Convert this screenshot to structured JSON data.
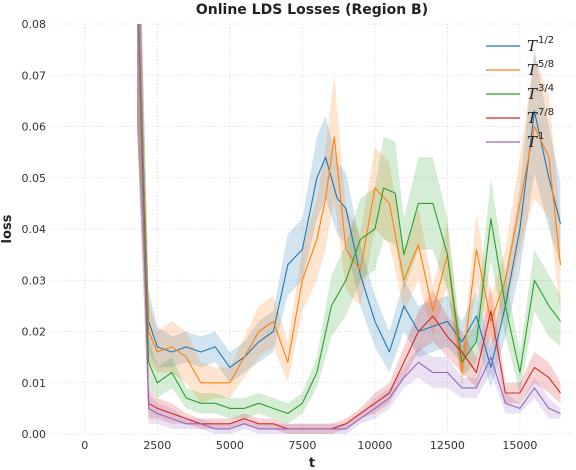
{
  "chart_data": {
    "type": "line",
    "title": "Online LDS Losses (Region B)",
    "xlabel": "t",
    "ylabel": "loss",
    "xlim": [
      -1200,
      16900
    ],
    "ylim": [
      0,
      0.08
    ],
    "xticks": [
      0,
      2500,
      5000,
      7500,
      10000,
      12500,
      15000
    ],
    "xtick_labels": [
      "0",
      "2500",
      "5000",
      "7500",
      "10000",
      "12500",
      "15000"
    ],
    "yticks": [
      0,
      0.01,
      0.02,
      0.03,
      0.04,
      0.05,
      0.06,
      0.07,
      0.08
    ],
    "ytick_labels": [
      "0.00",
      "0.01",
      "0.02",
      "0.03",
      "0.04",
      "0.05",
      "0.06",
      "0.07",
      "0.08"
    ],
    "grid": true,
    "legend_position": "top-right",
    "colors": {
      "blue": "#1f77b4",
      "orange": "#ff7f0e",
      "green": "#2ca02c",
      "red": "#d62728",
      "purple": "#9467bd"
    },
    "series": [
      {
        "name_base": "T",
        "name_exp": "1/2",
        "color": "#1f77b4",
        "x": [
          1800,
          2200,
          2500,
          3000,
          3500,
          4000,
          4500,
          5000,
          5500,
          6000,
          6500,
          7000,
          7500,
          8000,
          8300,
          8700,
          9000,
          9500,
          10000,
          10500,
          11000,
          11500,
          12000,
          12500,
          13000,
          13500,
          14000,
          14500,
          15000,
          15500,
          16000,
          16400
        ],
        "y": [
          0.09,
          0.022,
          0.017,
          0.016,
          0.017,
          0.016,
          0.017,
          0.013,
          0.015,
          0.018,
          0.02,
          0.033,
          0.036,
          0.05,
          0.054,
          0.046,
          0.044,
          0.031,
          0.022,
          0.016,
          0.025,
          0.02,
          0.021,
          0.022,
          0.018,
          0.023,
          0.013,
          0.025,
          0.04,
          0.063,
          0.05,
          0.041
        ],
        "band": [
          0.03,
          0.006,
          0.004,
          0.003,
          0.003,
          0.003,
          0.003,
          0.003,
          0.003,
          0.004,
          0.004,
          0.006,
          0.006,
          0.008,
          0.008,
          0.007,
          0.007,
          0.006,
          0.005,
          0.004,
          0.005,
          0.005,
          0.005,
          0.005,
          0.004,
          0.005,
          0.004,
          0.006,
          0.008,
          0.012,
          0.01,
          0.008
        ]
      },
      {
        "name_base": "T",
        "name_exp": "5/8",
        "color": "#ff7f0e",
        "x": [
          1800,
          2200,
          2500,
          3000,
          3500,
          4000,
          4500,
          5000,
          5500,
          6000,
          6500,
          7000,
          7500,
          8000,
          8300,
          8600,
          9000,
          9500,
          10000,
          10500,
          11000,
          11500,
          12000,
          12500,
          13000,
          13500,
          14000,
          14500,
          15000,
          15500,
          16000,
          16400
        ],
        "y": [
          0.09,
          0.02,
          0.016,
          0.017,
          0.015,
          0.01,
          0.01,
          0.01,
          0.015,
          0.02,
          0.022,
          0.014,
          0.03,
          0.038,
          0.046,
          0.058,
          0.036,
          0.032,
          0.048,
          0.045,
          0.03,
          0.037,
          0.024,
          0.035,
          0.012,
          0.036,
          0.022,
          0.03,
          0.045,
          0.06,
          0.054,
          0.033
        ],
        "band": [
          0.03,
          0.006,
          0.004,
          0.005,
          0.005,
          0.004,
          0.003,
          0.003,
          0.004,
          0.005,
          0.005,
          0.004,
          0.006,
          0.008,
          0.01,
          0.012,
          0.008,
          0.007,
          0.008,
          0.008,
          0.006,
          0.007,
          0.005,
          0.006,
          0.003,
          0.007,
          0.005,
          0.006,
          0.009,
          0.014,
          0.012,
          0.009
        ]
      },
      {
        "name_base": "T",
        "name_exp": "3/4",
        "color": "#2ca02c",
        "x": [
          1800,
          2200,
          2500,
          3000,
          3500,
          4000,
          4500,
          5000,
          5500,
          6000,
          6500,
          7000,
          7500,
          8000,
          8500,
          9000,
          9500,
          10000,
          10300,
          10700,
          11000,
          11500,
          12000,
          12500,
          13000,
          13500,
          14000,
          14500,
          15000,
          15500,
          16000,
          16400
        ],
        "y": [
          0.09,
          0.014,
          0.01,
          0.012,
          0.007,
          0.006,
          0.006,
          0.005,
          0.005,
          0.006,
          0.005,
          0.004,
          0.006,
          0.012,
          0.025,
          0.03,
          0.038,
          0.04,
          0.048,
          0.047,
          0.035,
          0.045,
          0.045,
          0.035,
          0.014,
          0.018,
          0.042,
          0.025,
          0.012,
          0.03,
          0.025,
          0.022
        ],
        "band": [
          0.03,
          0.005,
          0.003,
          0.003,
          0.002,
          0.002,
          0.002,
          0.002,
          0.002,
          0.002,
          0.002,
          0.002,
          0.002,
          0.003,
          0.006,
          0.007,
          0.008,
          0.008,
          0.01,
          0.01,
          0.007,
          0.009,
          0.009,
          0.007,
          0.003,
          0.004,
          0.008,
          0.006,
          0.004,
          0.006,
          0.006,
          0.005
        ]
      },
      {
        "name_base": "T",
        "name_exp": "7/8",
        "color": "#d62728",
        "x": [
          1800,
          2200,
          2500,
          3000,
          3500,
          4000,
          4500,
          5000,
          5500,
          6000,
          6500,
          7000,
          7500,
          8000,
          8500,
          9000,
          9500,
          10000,
          10500,
          11000,
          11500,
          12000,
          12500,
          13000,
          13500,
          14000,
          14500,
          15000,
          15500,
          16000,
          16400
        ],
        "y": [
          0.09,
          0.006,
          0.005,
          0.004,
          0.003,
          0.002,
          0.002,
          0.002,
          0.003,
          0.002,
          0.002,
          0.001,
          0.001,
          0.001,
          0.001,
          0.002,
          0.004,
          0.006,
          0.008,
          0.014,
          0.02,
          0.023,
          0.019,
          0.016,
          0.012,
          0.024,
          0.008,
          0.008,
          0.013,
          0.011,
          0.008
        ],
        "band": [
          0.03,
          0.003,
          0.002,
          0.002,
          0.001,
          0.001,
          0.001,
          0.001,
          0.001,
          0.001,
          0.001,
          0.001,
          0.001,
          0.001,
          0.001,
          0.001,
          0.001,
          0.002,
          0.002,
          0.003,
          0.004,
          0.005,
          0.004,
          0.004,
          0.003,
          0.005,
          0.002,
          0.002,
          0.003,
          0.003,
          0.002
        ]
      },
      {
        "name_base": "T",
        "name_exp": "1",
        "color": "#9467bd",
        "x": [
          1800,
          2200,
          2500,
          3000,
          3500,
          4000,
          4500,
          5000,
          5500,
          6000,
          6500,
          7000,
          7500,
          8000,
          8500,
          9000,
          9500,
          10000,
          10500,
          11000,
          11500,
          12000,
          12500,
          13000,
          13500,
          14000,
          14500,
          15000,
          15500,
          16000,
          16400
        ],
        "y": [
          0.09,
          0.005,
          0.004,
          0.003,
          0.002,
          0.002,
          0.001,
          0.001,
          0.002,
          0.001,
          0.001,
          0.001,
          0.001,
          0.001,
          0.001,
          0.001,
          0.003,
          0.005,
          0.007,
          0.011,
          0.014,
          0.012,
          0.012,
          0.009,
          0.009,
          0.015,
          0.006,
          0.005,
          0.009,
          0.005,
          0.004
        ],
        "band": [
          0.03,
          0.003,
          0.002,
          0.002,
          0.001,
          0.001,
          0.001,
          0.001,
          0.001,
          0.001,
          0.001,
          0.001,
          0.001,
          0.001,
          0.001,
          0.001,
          0.001,
          0.002,
          0.002,
          0.002,
          0.003,
          0.003,
          0.003,
          0.002,
          0.002,
          0.003,
          0.002,
          0.001,
          0.002,
          0.002,
          0.001
        ]
      }
    ]
  }
}
